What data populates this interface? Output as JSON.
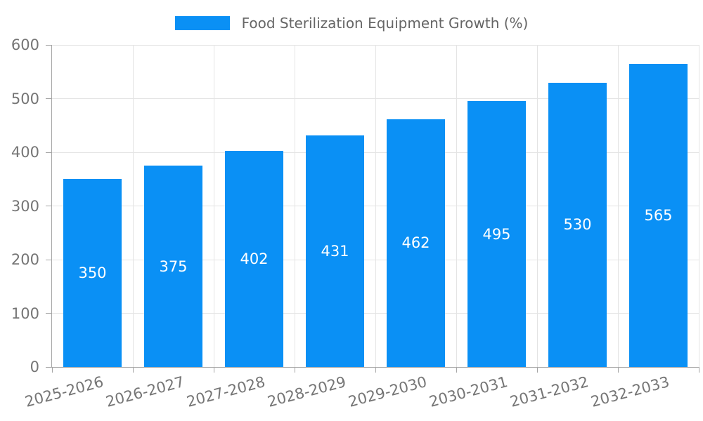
{
  "chart_data": {
    "type": "bar",
    "title": "Food Sterilization Equipment Growth (%)",
    "legend": {
      "position": "top",
      "entries": [
        "Food Sterilization Equipment Growth (%)"
      ]
    },
    "categories": [
      "2025-2026",
      "2026-2027",
      "2027-2028",
      "2028-2029",
      "2029-2030",
      "2030-2031",
      "2031-2032",
      "2032-2033"
    ],
    "values": [
      350,
      375,
      402,
      431,
      462,
      495,
      530,
      565
    ],
    "bar_value_labels": [
      "350",
      "375",
      "402",
      "431",
      "462",
      "495",
      "530",
      "565"
    ],
    "xlabel": "",
    "ylabel": "",
    "ylim": [
      0,
      600
    ],
    "ytick_step": 100,
    "ytick_labels": [
      "0",
      "100",
      "200",
      "300",
      "400",
      "500",
      "600"
    ],
    "grid": true,
    "x_label_rotation_deg": -15,
    "colors": {
      "bar": "#0a90f5",
      "bar_label": "#ffffff",
      "axis": "#a6a6a6",
      "grid_line": "#e4e4e4",
      "tick_text": "#757575",
      "legend_text": "#666666",
      "background": "#ffffff"
    }
  }
}
